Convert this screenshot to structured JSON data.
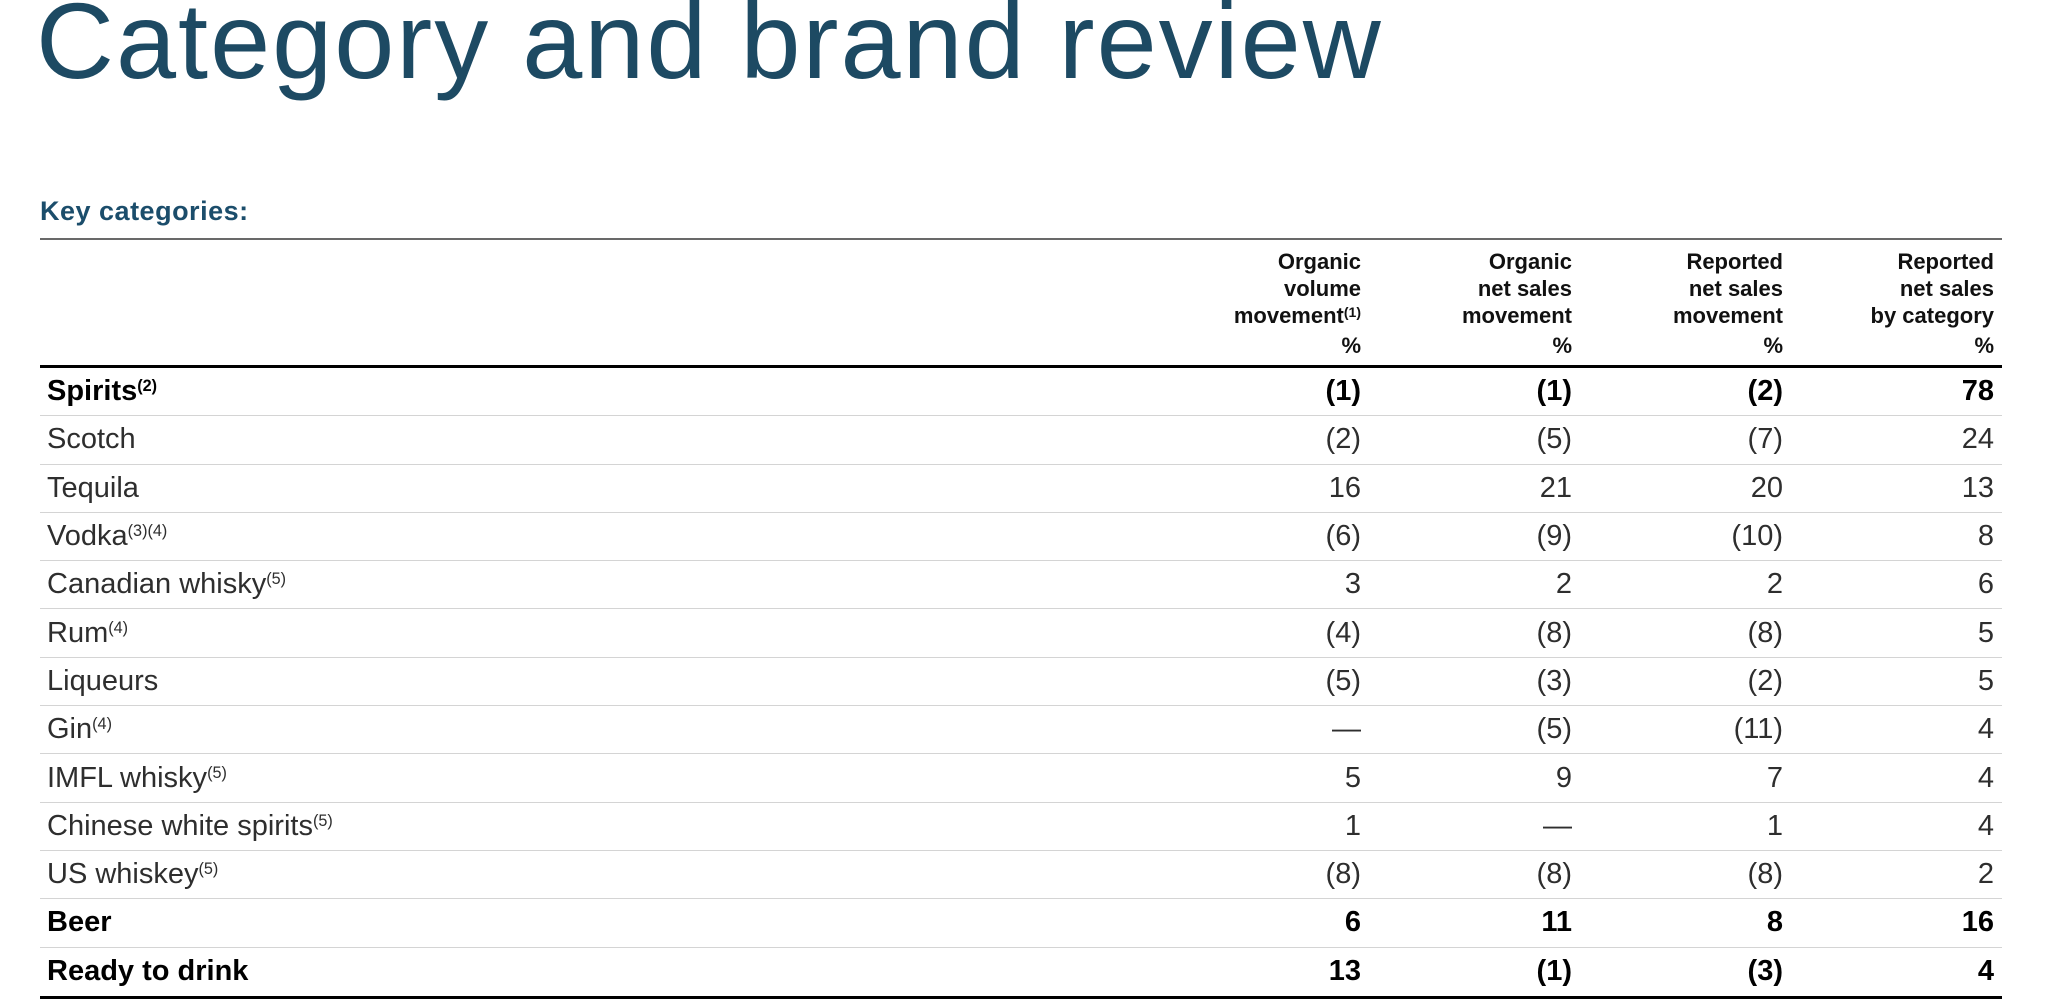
{
  "page": {
    "title": "Category and brand review",
    "section_heading": "Key categories:"
  },
  "colors": {
    "title_accent": "#1d4a63",
    "heading_accent": "#1b4d6b",
    "header_rule_gray": "#696969",
    "row_separator_gray": "#d4d4d4",
    "table_rule_black": "#000000"
  },
  "table": {
    "columns": [
      {
        "line1": "Organic",
        "line2": "volume",
        "line3": "movement",
        "footnote": "(1)",
        "unit": "%"
      },
      {
        "line1": "Organic",
        "line2": "net sales",
        "line3": "movement",
        "footnote": "",
        "unit": "%"
      },
      {
        "line1": "Reported",
        "line2": "net sales",
        "line3": "movement",
        "footnote": "",
        "unit": "%"
      },
      {
        "line1": "Reported",
        "line2": "net sales",
        "line3": "by category",
        "footnote": "",
        "unit": "%"
      }
    ],
    "rows": [
      {
        "name": "Spirits",
        "footnote": "(2)",
        "bold": true,
        "values": [
          "(1)",
          "(1)",
          "(2)",
          "78"
        ]
      },
      {
        "name": "Scotch",
        "footnote": "",
        "bold": false,
        "values": [
          "(2)",
          "(5)",
          "(7)",
          "24"
        ]
      },
      {
        "name": "Tequila",
        "footnote": "",
        "bold": false,
        "values": [
          "16",
          "21",
          "20",
          "13"
        ]
      },
      {
        "name": "Vodka",
        "footnote": "(3)(4)",
        "bold": false,
        "values": [
          "(6)",
          "(9)",
          "(10)",
          "8"
        ]
      },
      {
        "name": "Canadian whisky",
        "footnote": "(5)",
        "bold": false,
        "values": [
          "3",
          "2",
          "2",
          "6"
        ]
      },
      {
        "name": "Rum",
        "footnote": "(4)",
        "bold": false,
        "values": [
          "(4)",
          "(8)",
          "(8)",
          "5"
        ]
      },
      {
        "name": "Liqueurs",
        "footnote": "",
        "bold": false,
        "values": [
          "(5)",
          "(3)",
          "(2)",
          "5"
        ]
      },
      {
        "name": "Gin",
        "footnote": "(4)",
        "bold": false,
        "values": [
          "—",
          "(5)",
          "(11)",
          "4"
        ]
      },
      {
        "name": "IMFL whisky",
        "footnote": "(5)",
        "bold": false,
        "values": [
          "5",
          "9",
          "7",
          "4"
        ]
      },
      {
        "name": "Chinese white spirits",
        "footnote": "(5)",
        "bold": false,
        "values": [
          "1",
          "—",
          "1",
          "4"
        ]
      },
      {
        "name": "US whiskey",
        "footnote": "(5)",
        "bold": false,
        "values": [
          "(8)",
          "(8)",
          "(8)",
          "2"
        ]
      },
      {
        "name": "Beer",
        "footnote": "",
        "bold": true,
        "values": [
          "6",
          "11",
          "8",
          "16"
        ]
      },
      {
        "name": "Ready to drink",
        "footnote": "",
        "bold": true,
        "values": [
          "13",
          "(1)",
          "(3)",
          "4"
        ]
      }
    ]
  }
}
